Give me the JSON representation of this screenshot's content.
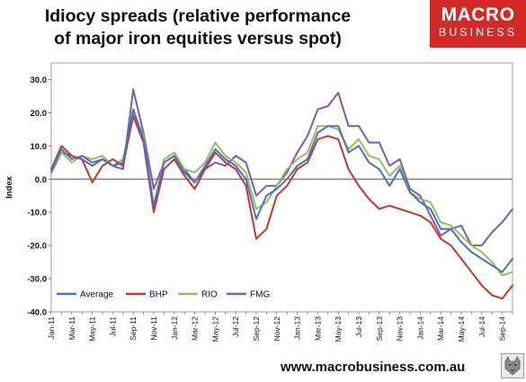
{
  "title": {
    "line1": "Idiocy spreads (relative performance",
    "line2": "of major iron equities versus spot)"
  },
  "logo": {
    "line1": "MACRO",
    "line2": "BUSINESS"
  },
  "footer": {
    "url": "www.macrobusiness.com.au"
  },
  "colors": {
    "Average": "#4472c4",
    "BHP": "#c0392b",
    "RIO": "#9bbb59",
    "FMG": "#7d5ba6"
  },
  "chart_data": {
    "type": "line",
    "ylabel": "Index",
    "xlabel": "",
    "ylim": [
      -40,
      35
    ],
    "yticks": [
      -40,
      -30,
      -20,
      -10,
      0,
      10,
      20,
      30
    ],
    "ytick_labels": [
      "-40.0",
      "-30.0",
      "-20.0",
      "-10.0",
      "0.0",
      "10.0",
      "20.0",
      "30.0"
    ],
    "x_tick_labels": [
      "Jan-11",
      "Mar-11",
      "May-11",
      "Jul-11",
      "Sep-11",
      "Nov-11",
      "Jan-12",
      "Mar-12",
      "May-12",
      "Jul-12",
      "Sep-12",
      "Nov-12",
      "Jan-13",
      "Mar-13",
      "May-13",
      "Jul-13",
      "Sep-13",
      "Nov-13",
      "Jan-14",
      "Mar-14",
      "May-14",
      "Jul-14",
      "Sep-14"
    ],
    "legend_position": "bottom-left",
    "grid": false,
    "x": [
      "Jan-11",
      "Feb-11",
      "Mar-11",
      "Apr-11",
      "May-11",
      "Jun-11",
      "Jul-11",
      "Aug-11",
      "Sep-11",
      "Oct-11",
      "Nov-11",
      "Dec-11",
      "Jan-12",
      "Feb-12",
      "Mar-12",
      "Apr-12",
      "May-12",
      "Jun-12",
      "Jul-12",
      "Aug-12",
      "Sep-12",
      "Oct-12",
      "Nov-12",
      "Dec-12",
      "Jan-13",
      "Feb-13",
      "Mar-13",
      "Apr-13",
      "May-13",
      "Jun-13",
      "Jul-13",
      "Aug-13",
      "Sep-13",
      "Oct-13",
      "Nov-13",
      "Dec-13",
      "Jan-14",
      "Feb-14",
      "Mar-14",
      "Apr-14",
      "May-14",
      "Jun-14",
      "Jul-14",
      "Aug-14",
      "Sep-14",
      "Oct-14"
    ],
    "series": [
      {
        "name": "Average",
        "values": [
          3,
          9,
          6,
          7,
          5,
          6,
          4,
          5,
          21,
          12,
          -8,
          5,
          7,
          2,
          -1,
          4,
          9,
          6,
          4,
          0,
          -12,
          -5,
          -3,
          0,
          4,
          6,
          14,
          16,
          16,
          8,
          10,
          5,
          3,
          -2,
          3,
          -4,
          -7,
          -9,
          -15,
          -15,
          -19,
          -22,
          -24,
          -26,
          -28,
          -24
        ]
      },
      {
        "name": "BHP",
        "values": [
          3,
          10,
          7,
          6,
          -1,
          4,
          6,
          4,
          19,
          11,
          -10,
          3,
          6,
          1,
          -3,
          3,
          8,
          5,
          3,
          -2,
          -18,
          -15,
          -5,
          -2,
          3,
          5,
          12,
          13,
          12,
          3,
          -2,
          -6,
          -9,
          -8,
          -9,
          -10,
          -11,
          -13,
          -18,
          -20,
          -24,
          -28,
          -32,
          -35,
          -36,
          -32
        ]
      },
      {
        "name": "RIO",
        "values": [
          3,
          8,
          5,
          7,
          6,
          7,
          4,
          6,
          20,
          13,
          -9,
          6,
          8,
          3,
          2,
          5,
          11,
          7,
          5,
          2,
          -9,
          -7,
          -2,
          3,
          6,
          8,
          16,
          16,
          15,
          9,
          12,
          7,
          6,
          1,
          4,
          -4,
          -6,
          -7,
          -13,
          -14,
          -17,
          -20,
          -22,
          -25,
          -29,
          -28
        ]
      },
      {
        "name": "FMG",
        "values": [
          2,
          8,
          7,
          6,
          4,
          6,
          4,
          3,
          27,
          14,
          -3,
          5,
          7,
          3,
          -1,
          3,
          5,
          4,
          7,
          5,
          -5,
          -2,
          -2,
          2,
          8,
          13,
          21,
          22,
          26,
          16,
          16,
          11,
          11,
          4,
          6,
          -3,
          -5,
          -11,
          -17,
          -15,
          -14,
          -20,
          -20,
          -16,
          -13,
          -9
        ]
      }
    ]
  }
}
